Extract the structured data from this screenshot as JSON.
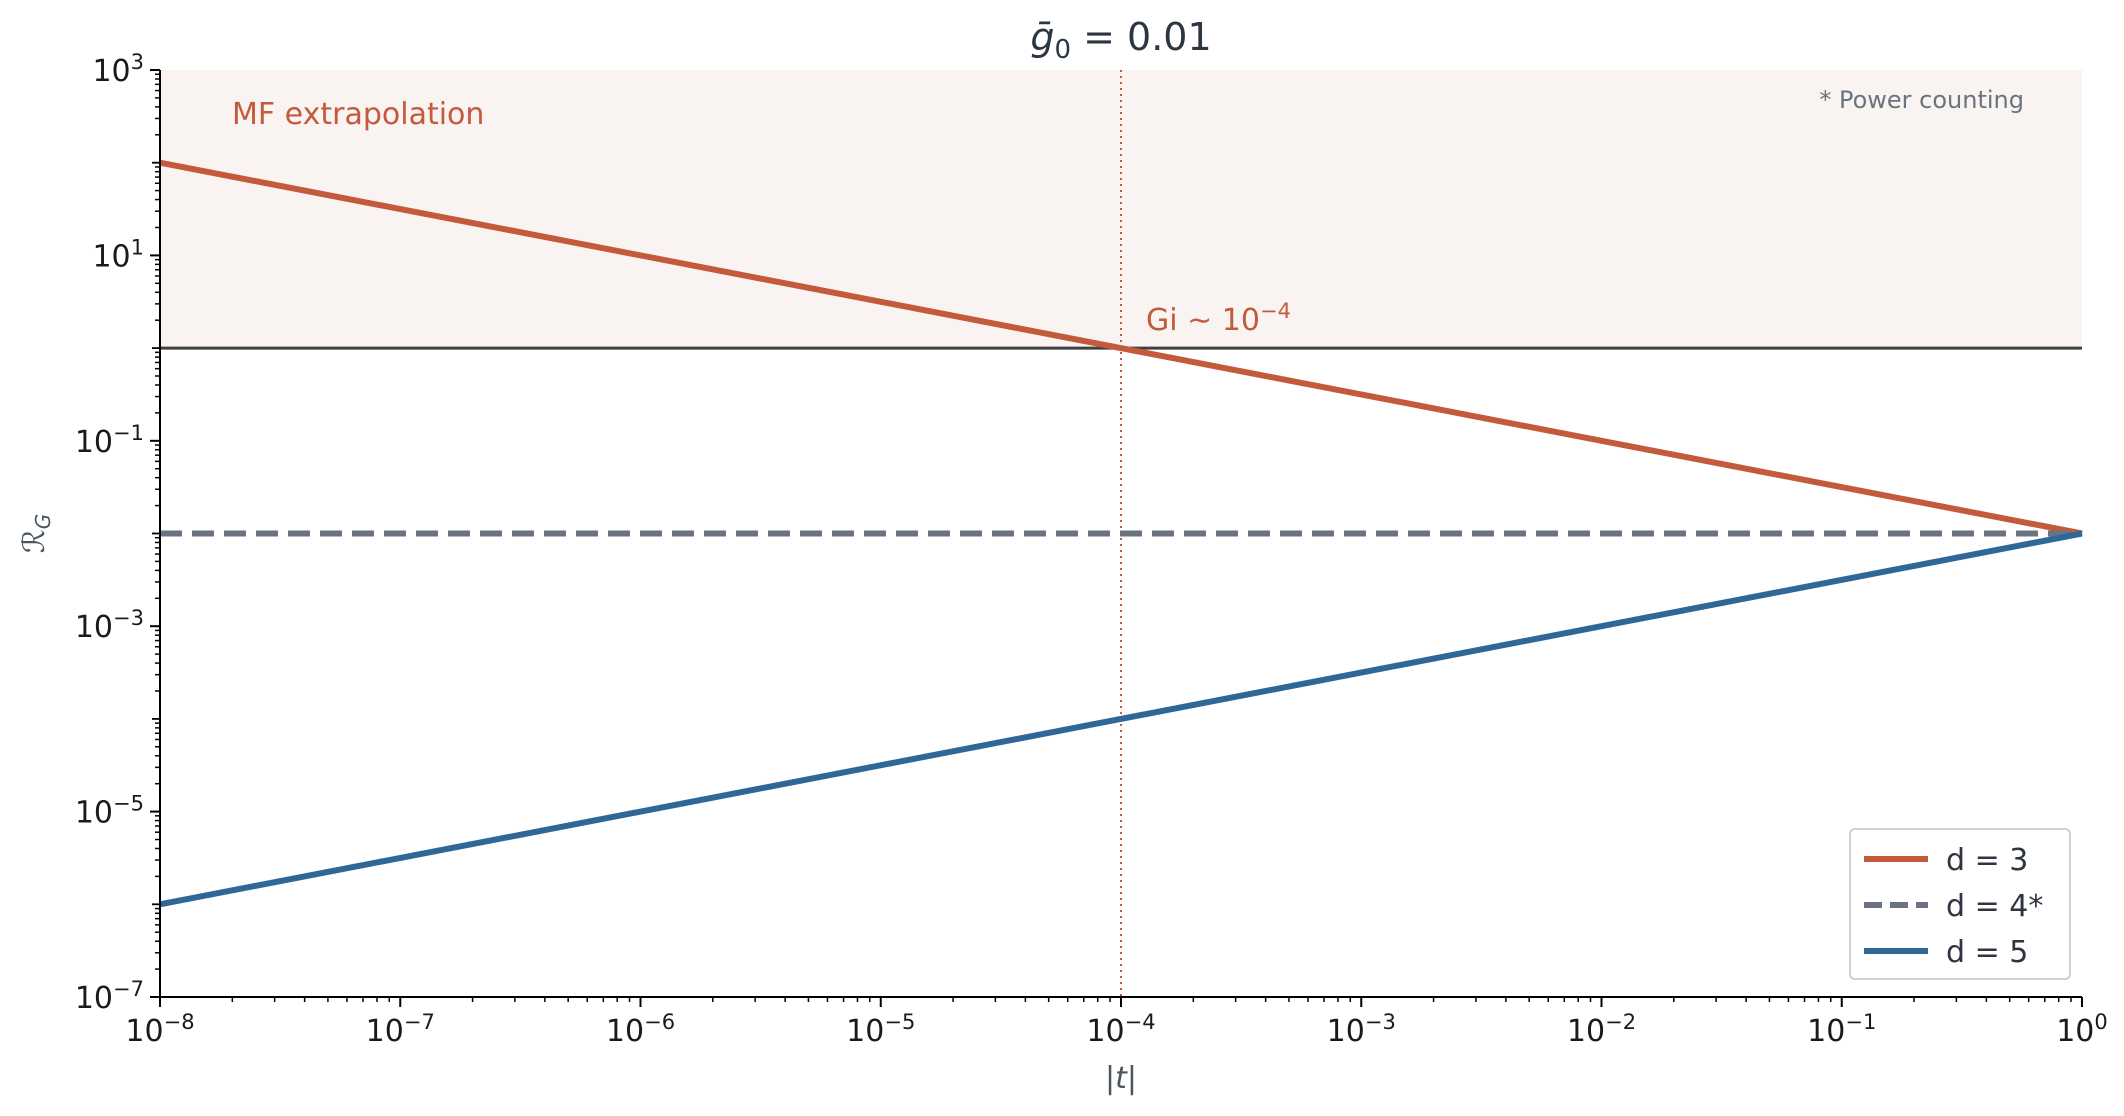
{
  "chart_data": {
    "type": "line",
    "title": "ḡ₀ = 0.01",
    "title_base": "ḡ",
    "title_sub": "0",
    "title_rest": " = 0.01",
    "xlabel": "|t|",
    "ylabel_base": "ℛ",
    "ylabel_sub": "G",
    "x_scale": "log",
    "y_scale": "log",
    "xlim": [
      1e-08,
      1
    ],
    "ylim": [
      1e-07,
      1000
    ],
    "x_ticks": [
      {
        "base": "10",
        "exp": "−8",
        "value": 1e-08
      },
      {
        "base": "10",
        "exp": "−7",
        "value": 1e-07
      },
      {
        "base": "10",
        "exp": "−6",
        "value": 1e-06
      },
      {
        "base": "10",
        "exp": "−5",
        "value": 1e-05
      },
      {
        "base": "10",
        "exp": "−4",
        "value": 0.0001
      },
      {
        "base": "10",
        "exp": "−3",
        "value": 0.001
      },
      {
        "base": "10",
        "exp": "−2",
        "value": 0.01
      },
      {
        "base": "10",
        "exp": "−1",
        "value": 0.1
      },
      {
        "base": "10",
        "exp": "0",
        "value": 1
      }
    ],
    "y_ticks": [
      {
        "base": "10",
        "exp": "3",
        "value": 1000
      },
      {
        "base": "10",
        "exp": "1",
        "value": 10
      },
      {
        "base": "10",
        "exp": "−1",
        "value": 0.1
      },
      {
        "base": "10",
        "exp": "−3",
        "value": 0.001
      },
      {
        "base": "10",
        "exp": "−5",
        "value": 1e-05
      },
      {
        "base": "10",
        "exp": "−7",
        "value": 1e-07
      }
    ],
    "series": [
      {
        "name": "d = 3",
        "x": [
          1e-08,
          1
        ],
        "y": [
          100,
          0.01
        ],
        "color": "#c45a3c",
        "dash": "solid"
      },
      {
        "name": "d = 4*",
        "x": [
          1e-08,
          1
        ],
        "y": [
          0.01,
          0.01
        ],
        "color": "#6b7380",
        "dash": "dashed"
      },
      {
        "name": "d = 5",
        "x": [
          1e-08,
          1
        ],
        "y": [
          1e-06,
          0.01
        ],
        "color": "#2f6896",
        "dash": "solid"
      }
    ],
    "reference_line_y": 1,
    "reference_line_color": "#404040",
    "vertical_line_x": 0.0001,
    "vertical_line_color": "#c45a3c",
    "shaded_region": {
      "y_from": 1,
      "y_to": 1000,
      "color": "#f9f3f1"
    },
    "annotations": {
      "mf_label": "MF extrapolation",
      "gi_base": "Gi ∼ 10",
      "gi_exp": "−4",
      "power_note": "* Power counting"
    },
    "legend_position": "lower-right",
    "grid": false
  }
}
